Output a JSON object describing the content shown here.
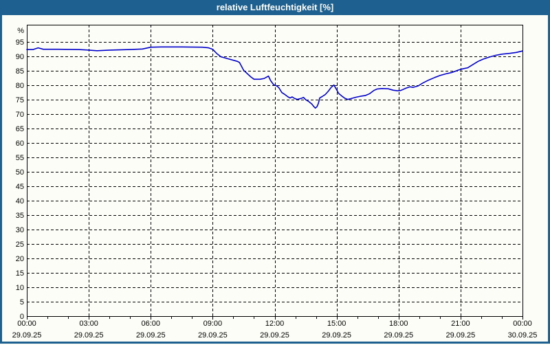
{
  "window": {
    "title": "relative Luftfeuchtigkeit [%]"
  },
  "colors": {
    "frame": "#1E6090",
    "title_text": "#FFFFFF",
    "background": "#FDFDF7",
    "plot_border": "#000000",
    "gridline": "#000000",
    "tick_text": "#000000",
    "series_line": "#0000CC"
  },
  "chart_data": {
    "type": "line",
    "title": "relative Luftfeuchtigkeit [%]",
    "ylabel": "%",
    "xlabel": "",
    "grid": "dashed",
    "legend": "none",
    "xlim_hours": [
      0,
      24
    ],
    "ylim": [
      0,
      101
    ],
    "y_ticks": {
      "min": 0,
      "max": 95,
      "step": 5
    },
    "minor_x_tick_every_hours": 1,
    "x_ticks": [
      {
        "hour": 0,
        "time": "00:00",
        "date": "29.09.25"
      },
      {
        "hour": 3,
        "time": "03:00",
        "date": "29.09.25"
      },
      {
        "hour": 6,
        "time": "06:00",
        "date": "29.09.25"
      },
      {
        "hour": 9,
        "time": "09:00",
        "date": "29.09.25"
      },
      {
        "hour": 12,
        "time": "12:00",
        "date": "29.09.25"
      },
      {
        "hour": 15,
        "time": "15:00",
        "date": "29.09.25"
      },
      {
        "hour": 18,
        "time": "18:00",
        "date": "29.09.25"
      },
      {
        "hour": 21,
        "time": "21:00",
        "date": "29.09.25"
      },
      {
        "hour": 24,
        "time": "00:00",
        "date": "30.09.25"
      }
    ],
    "series": [
      {
        "name": "relative Luftfeuchtigkeit",
        "color": "#0000CC",
        "points": [
          [
            0.0,
            92.4
          ],
          [
            0.3,
            92.4
          ],
          [
            0.55,
            93.0
          ],
          [
            0.8,
            92.5
          ],
          [
            1.5,
            92.5
          ],
          [
            2.5,
            92.4
          ],
          [
            3.0,
            92.2
          ],
          [
            3.4,
            92.0
          ],
          [
            4.0,
            92.2
          ],
          [
            5.0,
            92.4
          ],
          [
            5.6,
            92.6
          ],
          [
            6.0,
            93.2
          ],
          [
            6.5,
            93.3
          ],
          [
            7.5,
            93.3
          ],
          [
            8.5,
            93.2
          ],
          [
            8.8,
            93.0
          ],
          [
            9.0,
            92.5
          ],
          [
            9.2,
            91.0
          ],
          [
            9.4,
            89.9
          ],
          [
            9.8,
            89.1
          ],
          [
            10.2,
            88.3
          ],
          [
            10.3,
            87.9
          ],
          [
            10.5,
            85.2
          ],
          [
            10.85,
            82.9
          ],
          [
            11.0,
            82.1
          ],
          [
            11.3,
            82.1
          ],
          [
            11.5,
            82.4
          ],
          [
            11.7,
            83.2
          ],
          [
            11.8,
            81.7
          ],
          [
            11.95,
            80.2
          ],
          [
            12.1,
            79.8
          ],
          [
            12.2,
            79.2
          ],
          [
            12.35,
            77.5
          ],
          [
            12.5,
            76.8
          ],
          [
            12.65,
            76.0
          ],
          [
            12.75,
            75.6
          ],
          [
            12.85,
            76.0
          ],
          [
            12.95,
            75.5
          ],
          [
            13.1,
            75.1
          ],
          [
            13.3,
            75.5
          ],
          [
            13.4,
            75.8
          ],
          [
            13.5,
            75.0
          ],
          [
            13.65,
            74.4
          ],
          [
            13.8,
            73.5
          ],
          [
            13.9,
            72.6
          ],
          [
            13.97,
            72.1
          ],
          [
            14.05,
            72.6
          ],
          [
            14.12,
            73.8
          ],
          [
            14.18,
            75.6
          ],
          [
            14.3,
            76.1
          ],
          [
            14.45,
            76.8
          ],
          [
            14.6,
            78.0
          ],
          [
            14.75,
            79.4
          ],
          [
            14.87,
            80.1
          ],
          [
            15.0,
            78.5
          ],
          [
            15.1,
            77.2
          ],
          [
            15.25,
            76.3
          ],
          [
            15.4,
            75.5
          ],
          [
            15.55,
            75.1
          ],
          [
            15.75,
            75.5
          ],
          [
            15.95,
            75.9
          ],
          [
            16.15,
            76.2
          ],
          [
            16.4,
            76.5
          ],
          [
            16.6,
            77.1
          ],
          [
            16.8,
            78.2
          ],
          [
            16.95,
            78.7
          ],
          [
            17.2,
            78.9
          ],
          [
            17.5,
            78.8
          ],
          [
            17.75,
            78.3
          ],
          [
            17.95,
            78.1
          ],
          [
            18.1,
            78.2
          ],
          [
            18.35,
            79.0
          ],
          [
            18.55,
            79.5
          ],
          [
            18.7,
            79.3
          ],
          [
            18.95,
            79.8
          ],
          [
            19.15,
            80.7
          ],
          [
            19.45,
            81.8
          ],
          [
            19.75,
            82.7
          ],
          [
            20.0,
            83.4
          ],
          [
            20.3,
            84.0
          ],
          [
            20.6,
            84.5
          ],
          [
            20.9,
            85.3
          ],
          [
            21.1,
            85.7
          ],
          [
            21.35,
            86.1
          ],
          [
            21.6,
            87.2
          ],
          [
            21.85,
            88.3
          ],
          [
            22.1,
            89.1
          ],
          [
            22.4,
            89.8
          ],
          [
            22.7,
            90.4
          ],
          [
            23.0,
            90.8
          ],
          [
            23.4,
            91.1
          ],
          [
            23.7,
            91.4
          ],
          [
            24.0,
            91.9
          ]
        ]
      }
    ]
  }
}
